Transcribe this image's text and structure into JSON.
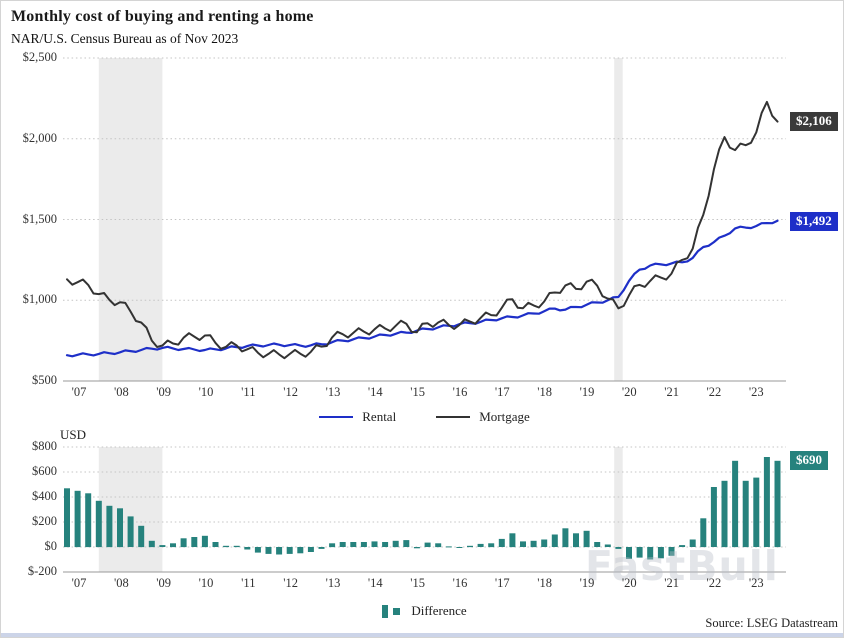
{
  "header": {
    "title": "Monthly cost of buying and renting a home",
    "subtitle": "NAR/U.S. Census Bureau as of Nov 2023"
  },
  "source": "Source: LSEG Datastream",
  "watermark": "FastBull",
  "colors": {
    "rental": "#1e2fc8",
    "mortgage": "#333333",
    "difference": "#26827d",
    "recession_band": "#ebebeb",
    "grid": "#c4c4c4",
    "axis": "#999999",
    "badge_mortgage_bg": "#3a3a3a",
    "badge_rental_bg": "#1e2fc8",
    "badge_diff_bg": "#26827d"
  },
  "chart_data": [
    {
      "panel": "top",
      "type": "line",
      "title": "Monthly cost of buying and renting a home",
      "subtitle": "NAR/U.S. Census Bureau as of Nov 2023",
      "x_tick_labels": [
        "'07",
        "'08",
        "'09",
        "'10",
        "'11",
        "'12",
        "'13",
        "'14",
        "'15",
        "'16",
        "'17",
        "'18",
        "'19",
        "'20",
        "'21",
        "'22",
        "'23"
      ],
      "y_ticks": [
        2500,
        2000,
        1500,
        1000,
        500
      ],
      "y_tick_labels": [
        "$2,500",
        "$2,000",
        "$1,500",
        "$1,000",
        "$500"
      ],
      "ylim": [
        500,
        2500
      ],
      "grid": "dotted-horizontal",
      "legend_position": "bottom-center",
      "x_start": "2007-Q1",
      "x_end": "2023-Q4 (Nov 2023)",
      "recession_band_indices": [
        [
          3.0,
          9.0
        ],
        [
          51.6,
          52.4
        ]
      ],
      "series": [
        {
          "name": "Rental",
          "color_key": "rental",
          "end_label": "$1,492",
          "values": [
            660,
            662,
            665,
            668,
            672,
            678,
            685,
            692,
            700,
            705,
            702,
            698,
            695,
            692,
            696,
            702,
            710,
            716,
            720,
            723,
            725,
            722,
            719,
            721,
            728,
            740,
            750,
            758,
            766,
            775,
            785,
            792,
            800,
            812,
            822,
            832,
            842,
            852,
            858,
            866,
            878,
            888,
            896,
            906,
            918,
            932,
            948,
            942,
            958,
            972,
            986,
            1000,
            1020,
            1120,
            1190,
            1215,
            1222,
            1228,
            1235,
            1262,
            1330,
            1360,
            1400,
            1445,
            1450,
            1460,
            1478,
            1492
          ]
        },
        {
          "name": "Mortgage",
          "color_key": "mortgage",
          "end_label": "$2,106",
          "values": [
            1130,
            1112,
            1095,
            1038,
            1002,
            988,
            930,
            862,
            750,
            720,
            732,
            768,
            775,
            782,
            736,
            712,
            720,
            696,
            675,
            668,
            665,
            667,
            669,
            681,
            713,
            770,
            790,
            798,
            806,
            820,
            825,
            842,
            855,
            802,
            857,
            862,
            847,
            847,
            868,
            891,
            908,
            953,
            1006,
            951,
            968,
            992,
            1048,
            1092,
            1070,
            1115,
            1090,
            1010,
            950,
            1030,
            1095,
            1120,
            1140,
            1165,
            1250,
            1320,
            1530,
            1810,
            2010,
            1930,
            1960,
            2040,
            2228,
            2106
          ]
        }
      ]
    },
    {
      "panel": "bottom",
      "type": "bar",
      "ylabel": "USD",
      "x_tick_labels": [
        "'07",
        "'08",
        "'09",
        "'10",
        "'11",
        "'12",
        "'13",
        "'14",
        "'15",
        "'16",
        "'17",
        "'18",
        "'19",
        "'20",
        "'21",
        "'22",
        "'23"
      ],
      "y_ticks": [
        800,
        600,
        400,
        200,
        0,
        -200
      ],
      "y_tick_labels": [
        "$800",
        "$600",
        "$400",
        "$200",
        "$0",
        "$-200"
      ],
      "ylim": [
        -200,
        800
      ],
      "grid": "dotted-horizontal",
      "legend_position": "bottom-center",
      "recession_band_indices": [
        [
          3.0,
          9.0
        ],
        [
          51.6,
          52.4
        ]
      ],
      "series": [
        {
          "name": "Difference",
          "color_key": "difference",
          "end_label": "$690",
          "values": [
            470,
            450,
            430,
            370,
            330,
            310,
            245,
            170,
            50,
            15,
            30,
            70,
            80,
            90,
            40,
            10,
            10,
            -20,
            -45,
            -55,
            -60,
            -55,
            -50,
            -40,
            -15,
            30,
            40,
            40,
            40,
            45,
            40,
            50,
            55,
            -10,
            35,
            30,
            5,
            -5,
            10,
            25,
            30,
            65,
            110,
            45,
            50,
            60,
            100,
            150,
            110,
            130,
            40,
            20,
            -15,
            -95,
            -85,
            -100,
            -90,
            -70,
            15,
            60,
            230,
            480,
            530,
            690,
            530,
            555,
            720,
            690
          ]
        }
      ]
    }
  ]
}
